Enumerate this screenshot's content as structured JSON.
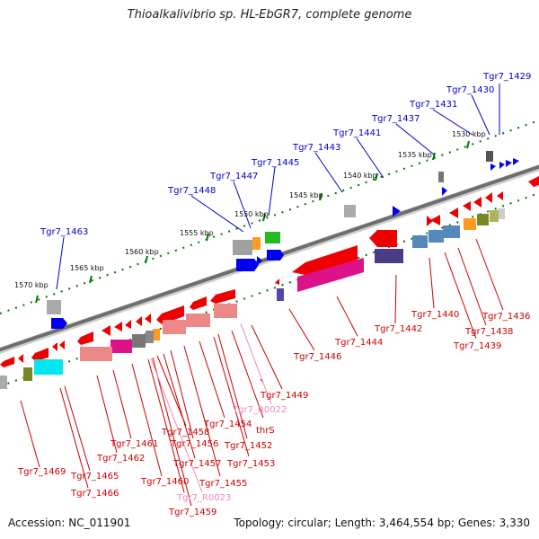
{
  "title": "Thioalkalivibrio sp. HL-EbGR7, complete genome",
  "footer": {
    "accession": "Accession: NC_011901",
    "summary": "Topology: circular; Length: 3,464,554 bp; Genes: 3,330"
  },
  "colors": {
    "top_label": "#0000cc",
    "bottom_label": "#cc0000",
    "rna_label": "#ee88bb",
    "backbone": "#777777",
    "tick": "#007700"
  },
  "scale_labels": [
    "1530 kbp",
    "1535 kbp",
    "1540 kbp",
    "1545 kbp",
    "1550 kbp",
    "1555 kbp",
    "1560 kbp",
    "1565 kbp",
    "1570 kbp"
  ],
  "top_labels": [
    "Tgr7_1429",
    "Tgr7_1430",
    "Tgr7_1431",
    "Tgr7_1437",
    "Tgr7_1441",
    "Tgr7_1443",
    "Tgr7_1445",
    "Tgr7_1447",
    "Tgr7_1448",
    "Tgr7_1463"
  ],
  "bottom_labels": [
    "Tgr7_1436",
    "Tgr7_1438",
    "Tgr7_1439",
    "Tgr7_1440",
    "Tgr7_1442",
    "Tgr7_1444",
    "Tgr7_1446",
    "Tgr7_1449",
    "Tgr7_R0022",
    "thrS",
    "Tgr7_1452",
    "Tgr7_1453",
    "Tgr7_1454",
    "Tgr7_1455",
    "Tgr7_1456",
    "Tgr7_1457",
    "Tgr7_1458",
    "Tgr7_1459",
    "Tgr7_R0023",
    "Tgr7_1460",
    "Tgr7_1461",
    "Tgr7_1462",
    "Tgr7_1465",
    "Tgr7_1466",
    "Tgr7_1469"
  ]
}
